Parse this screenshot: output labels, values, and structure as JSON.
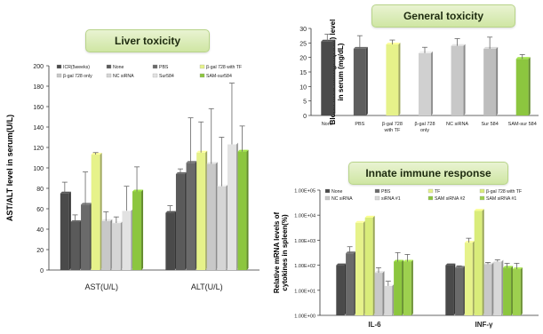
{
  "banners": {
    "liver": "Liver toxicity",
    "general": "General toxicity",
    "innate": "Innate immune response"
  },
  "chart_data": [
    {
      "id": "liver",
      "type": "bar",
      "title": "Liver toxicity",
      "ylabel": "AST/ALT level in serum(U/L)",
      "xlabel": "",
      "ylim": [
        0,
        200
      ],
      "yticks": [
        0,
        20,
        40,
        60,
        80,
        100,
        120,
        140,
        160,
        180,
        200
      ],
      "categories": [
        "AST(U/L)",
        "ALT(U/L)"
      ],
      "legend_position": "top",
      "series": [
        {
          "name": "ICR(5weeks)",
          "color": "#4a4a4a",
          "values": [
            75,
            56
          ],
          "errors": [
            11,
            7
          ]
        },
        {
          "name": "None",
          "color": "#5a5a5a",
          "values": [
            47,
            94
          ],
          "errors": [
            7,
            5
          ]
        },
        {
          "name": "PBS",
          "color": "#6a6a6a",
          "values": [
            64,
            105
          ],
          "errors": [
            32,
            44
          ]
        },
        {
          "name": "β-gal 728 with TF",
          "color": "#e6f28a",
          "values": [
            113,
            115
          ],
          "errors": [
            2,
            30
          ]
        },
        {
          "name": "β-gal 728 only",
          "color": "#c8c8c8",
          "values": [
            48,
            104
          ],
          "errors": [
            9,
            54
          ]
        },
        {
          "name": "NC siRNA",
          "color": "#d5d5d5",
          "values": [
            46,
            82
          ],
          "errors": [
            6,
            48
          ]
        },
        {
          "name": "Sur584",
          "color": "#e2e2e2",
          "values": [
            58,
            123
          ],
          "errors": [
            24,
            60
          ]
        },
        {
          "name": "SAM-sur584",
          "color": "#8cc63f",
          "values": [
            77,
            116
          ],
          "errors": [
            24,
            25
          ]
        }
      ]
    },
    {
      "id": "general",
      "type": "bar",
      "title": "General toxicity",
      "ylabel": "Blood urea nitrogen(BUN) level in serum (mg/dL)",
      "xlabel": "",
      "ylim": [
        0,
        30
      ],
      "yticks": [
        0,
        5,
        10,
        15,
        20,
        25,
        30
      ],
      "categories": [
        "None",
        "PBS",
        "β-gal 728 with TF",
        "β-gal 728 only",
        "NC siRNA",
        "Sur 584",
        "SAM-sur 584"
      ],
      "values": [
        25.5,
        23,
        24.5,
        21.5,
        24,
        23,
        19.5
      ],
      "errors": [
        2.5,
        4.5,
        1.5,
        2,
        2.5,
        4,
        1.5
      ],
      "colors": [
        "#4a4a4a",
        "#5e5e5e",
        "#e6f28a",
        "#d0d0d0",
        "#c8c8c8",
        "#bdbdbd",
        "#8cc63f"
      ]
    },
    {
      "id": "innate",
      "type": "bar",
      "title": "Innate immune response",
      "ylabel": "Relative mRNA levels of cytokines in spleen(%)",
      "xlabel": "",
      "scale": "log",
      "ylim": [
        1,
        100000
      ],
      "yticks": [
        "1.00E+00",
        "1.00E+01",
        "1.00E+02",
        "1.00E+03",
        "1.00E+04",
        "1.00E+05"
      ],
      "categories": [
        "IL-6",
        "INF-γ"
      ],
      "legend_position": "top",
      "series": [
        {
          "name": "None",
          "color": "#4a4a4a",
          "values": [
            100,
            100
          ],
          "errors": [
            0,
            0
          ]
        },
        {
          "name": "PBS",
          "color": "#6a6a6a",
          "values": [
            300,
            80
          ],
          "errors": [
            250,
            15
          ]
        },
        {
          "name": "TF",
          "color": "#e6f28a",
          "values": [
            5000,
            800
          ],
          "errors": [
            0,
            400
          ]
        },
        {
          "name": "β-gal 728 with TF",
          "color": "#d9ec7a",
          "values": [
            8000,
            15000
          ],
          "errors": [
            0,
            0
          ]
        },
        {
          "name": "NC siRNA",
          "color": "#c8c8c8",
          "values": [
            50,
            110
          ],
          "errors": [
            30,
            20
          ]
        },
        {
          "name": "siRNA #1",
          "color": "#d8d8d8",
          "values": [
            15,
            140
          ],
          "errors": [
            8,
            25
          ]
        },
        {
          "name": "SAM siRNA #2",
          "color": "#8cc63f",
          "values": [
            140,
            80
          ],
          "errors": [
            180,
            40
          ]
        },
        {
          "name": "SAM siRNA #1",
          "color": "#9dd04f",
          "values": [
            140,
            70
          ],
          "errors": [
            130,
            50
          ]
        }
      ]
    }
  ]
}
